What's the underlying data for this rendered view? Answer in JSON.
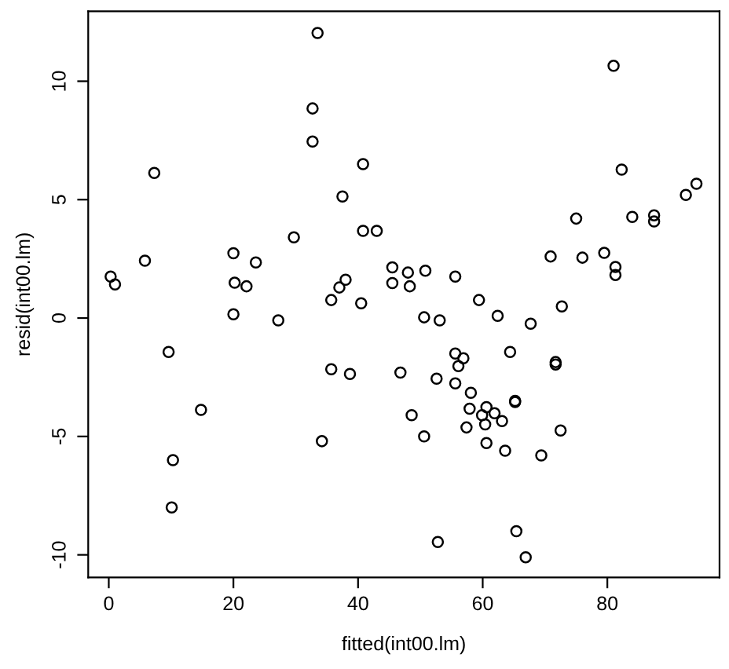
{
  "chart_data": {
    "type": "scatter",
    "xlabel": "fitted(int00.lm)",
    "ylabel": "resid(int00.lm)",
    "xlim": [
      -3.3,
      98
    ],
    "ylim": [
      -10.95,
      12.95
    ],
    "xticks": [
      0,
      20,
      40,
      60,
      80
    ],
    "yticks": [
      -10,
      -5,
      0,
      5,
      10
    ],
    "grid": false,
    "marker": "circle",
    "series": [
      {
        "color": "#000000",
        "x": [
          0.3,
          1.0,
          5.8,
          7.3,
          9.6,
          10.3,
          10.1,
          14.8,
          20.0,
          20.2,
          20.0,
          22.1,
          23.6,
          27.2,
          29.7,
          32.7,
          32.7,
          33.5,
          34.2,
          35.7,
          35.7,
          37.0,
          37.5,
          38.0,
          38.7,
          40.5,
          40.8,
          40.8,
          43.0,
          45.5,
          45.5,
          48.0,
          48.3,
          50.8,
          55.6,
          59.4,
          72.7,
          50.6,
          53.1,
          62.4,
          67.7,
          55.6,
          56.9,
          64.4,
          46.8,
          52.6,
          56.1,
          55.6,
          71.7,
          71.7,
          58.1,
          65.2,
          65.2,
          48.6,
          57.9,
          60.6,
          59.9,
          61.9,
          63.1,
          60.4,
          57.4,
          72.5,
          50.6,
          60.6,
          63.6,
          69.4,
          65.4,
          52.8,
          66.9,
          81.0,
          82.3,
          94.3,
          92.6,
          75.0,
          84.0,
          87.5,
          87.5,
          70.9,
          76.0,
          79.5,
          81.3,
          81.3
        ],
        "values": [
          1.75,
          1.42,
          2.42,
          6.13,
          -1.43,
          -6.0,
          -8.0,
          -3.88,
          2.74,
          1.49,
          0.16,
          1.34,
          2.35,
          -0.1,
          3.41,
          8.85,
          7.45,
          12.04,
          -5.2,
          0.76,
          -2.16,
          1.29,
          5.13,
          1.62,
          -2.36,
          0.62,
          6.5,
          3.68,
          3.68,
          2.14,
          1.48,
          1.92,
          1.34,
          2.0,
          1.75,
          0.76,
          0.49,
          0.03,
          -0.1,
          0.09,
          -0.24,
          -1.5,
          -1.7,
          -1.43,
          -2.3,
          -2.56,
          -2.03,
          -2.76,
          -1.96,
          -1.86,
          -3.16,
          -3.55,
          -3.5,
          -4.1,
          -3.83,
          -3.76,
          -4.1,
          -4.02,
          -4.35,
          -4.49,
          -4.62,
          -4.75,
          -5.0,
          -5.28,
          -5.6,
          -5.8,
          -9.0,
          -9.46,
          -10.1,
          10.65,
          6.27,
          5.67,
          5.2,
          4.2,
          4.27,
          4.34,
          4.08,
          2.6,
          2.55,
          2.75,
          2.16,
          1.82
        ]
      }
    ]
  }
}
